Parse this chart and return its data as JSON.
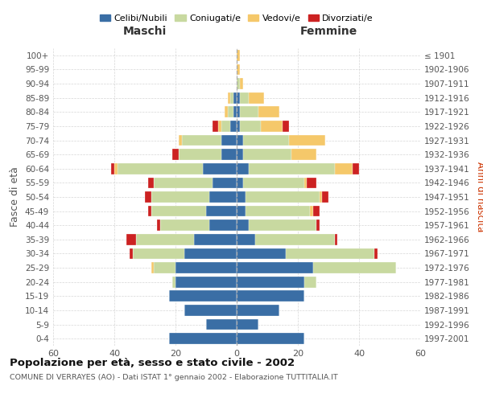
{
  "age_groups": [
    "0-4",
    "5-9",
    "10-14",
    "15-19",
    "20-24",
    "25-29",
    "30-34",
    "35-39",
    "40-44",
    "45-49",
    "50-54",
    "55-59",
    "60-64",
    "65-69",
    "70-74",
    "75-79",
    "80-84",
    "85-89",
    "90-94",
    "95-99",
    "100+"
  ],
  "birth_years": [
    "1997-2001",
    "1992-1996",
    "1987-1991",
    "1982-1986",
    "1977-1981",
    "1972-1976",
    "1967-1971",
    "1962-1966",
    "1957-1961",
    "1952-1956",
    "1947-1951",
    "1942-1946",
    "1937-1941",
    "1932-1936",
    "1927-1931",
    "1922-1926",
    "1917-1921",
    "1912-1916",
    "1907-1911",
    "1902-1906",
    "≤ 1901"
  ],
  "maschi_celibi": [
    22,
    10,
    17,
    22,
    20,
    20,
    17,
    14,
    9,
    10,
    9,
    8,
    11,
    5,
    5,
    2,
    1,
    1,
    0,
    0,
    0
  ],
  "maschi_coniugati": [
    0,
    0,
    0,
    0,
    1,
    7,
    17,
    19,
    16,
    18,
    19,
    19,
    28,
    14,
    13,
    3,
    2,
    1,
    0,
    0,
    0
  ],
  "maschi_vedovi": [
    0,
    0,
    0,
    0,
    0,
    1,
    0,
    0,
    0,
    0,
    0,
    0,
    1,
    0,
    1,
    1,
    1,
    1,
    0,
    0,
    0
  ],
  "maschi_divorziati": [
    0,
    0,
    0,
    0,
    0,
    0,
    1,
    3,
    1,
    1,
    2,
    2,
    1,
    2,
    0,
    2,
    0,
    0,
    0,
    0,
    0
  ],
  "femmine_celibi": [
    22,
    7,
    14,
    22,
    22,
    25,
    16,
    6,
    4,
    3,
    3,
    2,
    4,
    2,
    2,
    1,
    1,
    1,
    0,
    0,
    0
  ],
  "femmine_coniugati": [
    0,
    0,
    0,
    0,
    4,
    27,
    29,
    26,
    22,
    21,
    24,
    20,
    28,
    16,
    15,
    7,
    6,
    3,
    1,
    0,
    0
  ],
  "femmine_vedovi": [
    0,
    0,
    0,
    0,
    0,
    0,
    0,
    0,
    0,
    1,
    1,
    1,
    6,
    8,
    12,
    7,
    7,
    5,
    1,
    1,
    1
  ],
  "femmine_divorziati": [
    0,
    0,
    0,
    0,
    0,
    0,
    1,
    1,
    1,
    2,
    2,
    3,
    2,
    0,
    0,
    2,
    0,
    0,
    0,
    0,
    0
  ],
  "color_celibi": "#3A6EA5",
  "color_coniugati": "#C8D9A0",
  "color_vedovi": "#F5C86A",
  "color_divorziati": "#CC2222",
  "xlim": 60,
  "title": "Popolazione per età, sesso e stato civile - 2002",
  "subtitle": "COMUNE DI VERRAYES (AO) - Dati ISTAT 1° gennaio 2002 - Elaborazione TUTTITALIA.IT",
  "ylabel_left": "Fasce di età",
  "ylabel_right": "Anni di nascita",
  "label_maschi": "Maschi",
  "label_femmine": "Femmine",
  "legend_labels": [
    "Celibi/Nubili",
    "Coniugati/e",
    "Vedovi/e",
    "Divorziati/e"
  ]
}
